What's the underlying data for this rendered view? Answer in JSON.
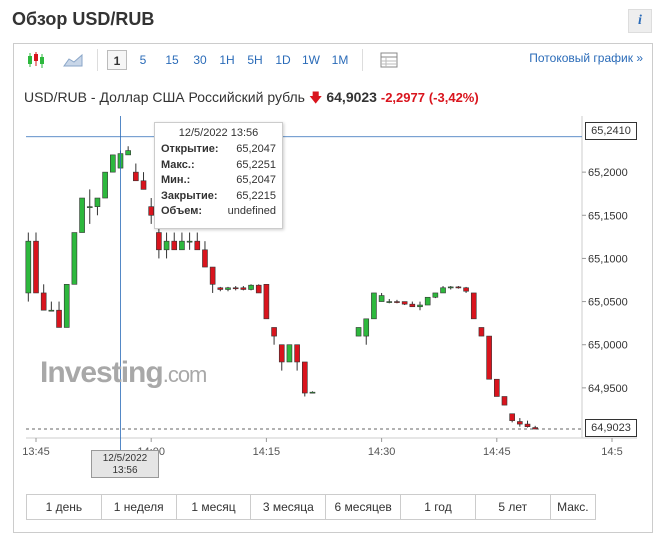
{
  "header": {
    "title": "Обзор USD/RUB",
    "info_label": "i"
  },
  "toolbar": {
    "chart_type_icons": [
      "candlestick-icon",
      "area-chart-icon"
    ],
    "intervals": [
      "1",
      "5",
      "15",
      "30",
      "1H",
      "5H",
      "1D",
      "1W",
      "1M"
    ],
    "selected_interval": "1",
    "table_icon": "table-icon",
    "stream_link": "Потоковый график »"
  },
  "quote": {
    "name": "USD/RUB - Доллар США Российский рубль",
    "price": "64,9023",
    "change": "-2,2977",
    "change_pct": "(-3,42%)",
    "direction": "down"
  },
  "tooltip": {
    "date": "12/5/2022 13:56",
    "rows": [
      {
        "label": "Открытие:",
        "value": "65,2047"
      },
      {
        "label": "Макс.:",
        "value": "65,2251"
      },
      {
        "label": "Мин.:",
        "value": "65,2047"
      },
      {
        "label": "Закрытие:",
        "value": "65,2215"
      },
      {
        "label": "Объем:",
        "value": "undefined"
      }
    ]
  },
  "crosshair": {
    "x_label_line1": "12/5/2022",
    "x_label_line2": "13:56",
    "y_label": "65,2410"
  },
  "last_price_label": "64,9023",
  "watermark": {
    "main": "Investing",
    "suffix": ".com"
  },
  "periods": [
    "1 день",
    "1 неделя",
    "1 месяц",
    "3 месяца",
    "6 месяцев",
    "1 год",
    "5 лет",
    "Макс."
  ],
  "colors": {
    "up": "#2db83d",
    "down": "#d9141d",
    "accent": "#2a6bb8"
  },
  "chart_data": {
    "type": "candlestick",
    "y_ticks": [
      "65,2000",
      "65,1500",
      "65,1000",
      "65,0500",
      "65,0000",
      "64,9500"
    ],
    "x_ticks": [
      "13:45",
      "14:00",
      "14:15",
      "14:30",
      "14:45",
      "14:5"
    ],
    "ylim": [
      64.9,
      65.25
    ],
    "candles": [
      {
        "t": "13:44",
        "o": 65.06,
        "h": 65.13,
        "l": 65.05,
        "c": 65.12
      },
      {
        "t": "13:45",
        "o": 65.12,
        "h": 65.13,
        "l": 65.06,
        "c": 65.06
      },
      {
        "t": "13:46",
        "o": 65.06,
        "h": 65.07,
        "l": 65.04,
        "c": 65.04
      },
      {
        "t": "13:47",
        "o": 65.04,
        "h": 65.05,
        "l": 65.04,
        "c": 65.04
      },
      {
        "t": "13:48",
        "o": 65.04,
        "h": 65.05,
        "l": 65.02,
        "c": 65.02
      },
      {
        "t": "13:49",
        "o": 65.02,
        "h": 65.07,
        "l": 65.02,
        "c": 65.07
      },
      {
        "t": "13:50",
        "o": 65.07,
        "h": 65.13,
        "l": 65.07,
        "c": 65.13
      },
      {
        "t": "13:51",
        "o": 65.13,
        "h": 65.17,
        "l": 65.13,
        "c": 65.17
      },
      {
        "t": "13:52",
        "o": 65.16,
        "h": 65.18,
        "l": 65.14,
        "c": 65.16
      },
      {
        "t": "13:53",
        "o": 65.16,
        "h": 65.17,
        "l": 65.15,
        "c": 65.17
      },
      {
        "t": "13:54",
        "o": 65.17,
        "h": 65.2,
        "l": 65.17,
        "c": 65.2
      },
      {
        "t": "13:55",
        "o": 65.2,
        "h": 65.22,
        "l": 65.2,
        "c": 65.22
      },
      {
        "t": "13:56",
        "o": 65.2047,
        "h": 65.2251,
        "l": 65.2047,
        "c": 65.2215
      },
      {
        "t": "13:57",
        "o": 65.22,
        "h": 65.23,
        "l": 65.22,
        "c": 65.225
      },
      {
        "t": "13:58",
        "o": 65.2,
        "h": 65.21,
        "l": 65.19,
        "c": 65.19
      },
      {
        "t": "13:59",
        "o": 65.19,
        "h": 65.2,
        "l": 65.18,
        "c": 65.18
      },
      {
        "t": "14:00",
        "o": 65.16,
        "h": 65.17,
        "l": 65.14,
        "c": 65.15
      },
      {
        "t": "14:01",
        "o": 65.13,
        "h": 65.14,
        "l": 65.1,
        "c": 65.11
      },
      {
        "t": "14:02",
        "o": 65.11,
        "h": 65.13,
        "l": 65.1,
        "c": 65.12
      },
      {
        "t": "14:03",
        "o": 65.12,
        "h": 65.13,
        "l": 65.11,
        "c": 65.11
      },
      {
        "t": "14:04",
        "o": 65.11,
        "h": 65.13,
        "l": 65.11,
        "c": 65.12
      },
      {
        "t": "14:05",
        "o": 65.12,
        "h": 65.13,
        "l": 65.11,
        "c": 65.12
      },
      {
        "t": "14:06",
        "o": 65.12,
        "h": 65.13,
        "l": 65.11,
        "c": 65.11
      },
      {
        "t": "14:07",
        "o": 65.11,
        "h": 65.12,
        "l": 65.09,
        "c": 65.09
      },
      {
        "t": "14:08",
        "o": 65.09,
        "h": 65.09,
        "l": 65.06,
        "c": 65.07
      },
      {
        "t": "14:09",
        "o": 65.066,
        "h": 65.067,
        "l": 65.062,
        "c": 65.064
      },
      {
        "t": "14:10",
        "o": 65.064,
        "h": 65.067,
        "l": 65.062,
        "c": 65.066
      },
      {
        "t": "14:11",
        "o": 65.066,
        "h": 65.068,
        "l": 65.063,
        "c": 65.065
      },
      {
        "t": "14:12",
        "o": 65.066,
        "h": 65.068,
        "l": 65.063,
        "c": 65.064
      },
      {
        "t": "14:13",
        "o": 65.064,
        "h": 65.07,
        "l": 65.063,
        "c": 65.069
      },
      {
        "t": "14:14",
        "o": 65.069,
        "h": 65.07,
        "l": 65.06,
        "c": 65.06
      },
      {
        "t": "14:15",
        "o": 65.07,
        "h": 65.07,
        "l": 65.03,
        "c": 65.03
      },
      {
        "t": "14:16",
        "o": 65.02,
        "h": 65.02,
        "l": 65.0,
        "c": 65.01
      },
      {
        "t": "14:17",
        "o": 65.0,
        "h": 65.0,
        "l": 64.97,
        "c": 64.98
      },
      {
        "t": "14:18",
        "o": 64.98,
        "h": 65.0,
        "l": 64.98,
        "c": 65.0
      },
      {
        "t": "14:19",
        "o": 65.0,
        "h": 65.0,
        "l": 64.97,
        "c": 64.98
      },
      {
        "t": "14:20",
        "o": 64.98,
        "h": 64.98,
        "l": 64.94,
        "c": 64.944
      },
      {
        "t": "14:21",
        "o": 64.945,
        "h": 64.946,
        "l": 64.944,
        "c": 64.945
      },
      {
        "t": "14:27",
        "o": 65.01,
        "h": 65.02,
        "l": 65.01,
        "c": 65.02
      },
      {
        "t": "14:28",
        "o": 65.01,
        "h": 65.03,
        "l": 65.0,
        "c": 65.03
      },
      {
        "t": "14:29",
        "o": 65.03,
        "h": 65.06,
        "l": 65.03,
        "c": 65.06
      },
      {
        "t": "14:30",
        "o": 65.05,
        "h": 65.06,
        "l": 65.05,
        "c": 65.057
      },
      {
        "t": "14:31",
        "o": 65.05,
        "h": 65.053,
        "l": 65.048,
        "c": 65.05
      },
      {
        "t": "14:32",
        "o": 65.05,
        "h": 65.052,
        "l": 65.048,
        "c": 65.049
      },
      {
        "t": "14:33",
        "o": 65.05,
        "h": 65.05,
        "l": 65.046,
        "c": 65.047
      },
      {
        "t": "14:34",
        "o": 65.047,
        "h": 65.05,
        "l": 65.044,
        "c": 65.044
      },
      {
        "t": "14:35",
        "o": 65.044,
        "h": 65.05,
        "l": 65.04,
        "c": 65.046
      },
      {
        "t": "14:36",
        "o": 65.046,
        "h": 65.055,
        "l": 65.046,
        "c": 65.055
      },
      {
        "t": "14:37",
        "o": 65.055,
        "h": 65.06,
        "l": 65.054,
        "c": 65.06
      },
      {
        "t": "14:38",
        "o": 65.06,
        "h": 65.068,
        "l": 65.06,
        "c": 65.066
      },
      {
        "t": "14:39",
        "o": 65.066,
        "h": 65.068,
        "l": 65.064,
        "c": 65.067
      },
      {
        "t": "14:40",
        "o": 65.067,
        "h": 65.068,
        "l": 65.065,
        "c": 65.066
      },
      {
        "t": "14:41",
        "o": 65.066,
        "h": 65.067,
        "l": 65.06,
        "c": 65.062
      },
      {
        "t": "14:42",
        "o": 65.06,
        "h": 65.06,
        "l": 65.03,
        "c": 65.03
      },
      {
        "t": "14:43",
        "o": 65.02,
        "h": 65.02,
        "l": 65.01,
        "c": 65.01
      },
      {
        "t": "14:44",
        "o": 65.01,
        "h": 65.01,
        "l": 64.96,
        "c": 64.96
      },
      {
        "t": "14:45",
        "o": 64.96,
        "h": 64.96,
        "l": 64.94,
        "c": 64.94
      },
      {
        "t": "14:46",
        "o": 64.94,
        "h": 64.94,
        "l": 64.93,
        "c": 64.93
      },
      {
        "t": "14:47",
        "o": 64.92,
        "h": 64.92,
        "l": 64.91,
        "c": 64.912
      },
      {
        "t": "14:48",
        "o": 64.911,
        "h": 64.915,
        "l": 64.905,
        "c": 64.908
      },
      {
        "t": "14:49",
        "o": 64.908,
        "h": 64.912,
        "l": 64.904,
        "c": 64.905
      },
      {
        "t": "14:50",
        "o": 64.904,
        "h": 64.906,
        "l": 64.902,
        "c": 64.9023
      }
    ]
  }
}
